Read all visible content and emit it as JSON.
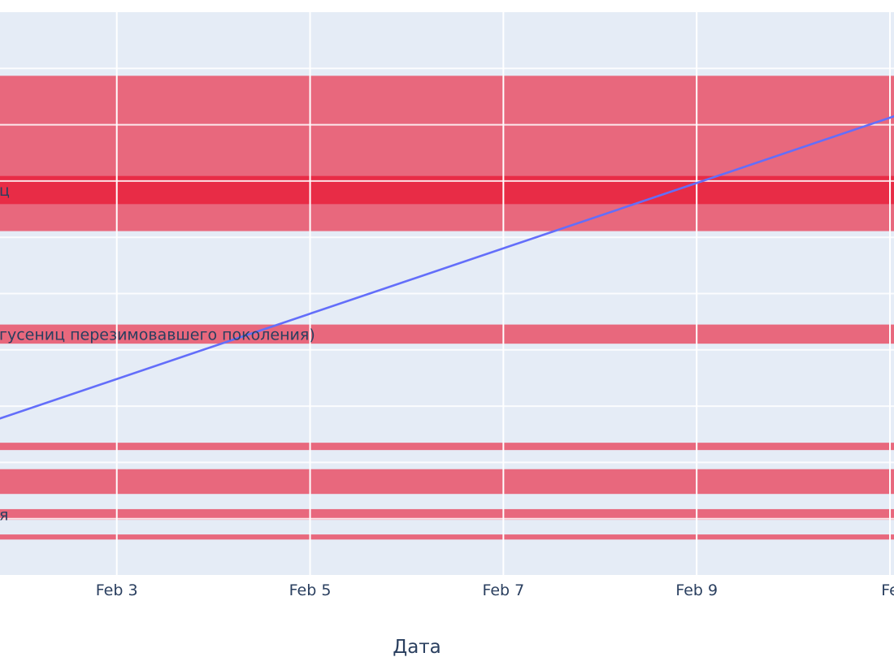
{
  "chart_data": {
    "type": "line",
    "xlabel": "Дата",
    "x_ticks": [
      {
        "label": "Feb 3",
        "date": "2024-02-03"
      },
      {
        "label": "Feb 5",
        "date": "2024-02-05"
      },
      {
        "label": "Feb 7",
        "date": "2024-02-07"
      },
      {
        "label": "Feb 9",
        "date": "2024-02-09"
      },
      {
        "label": "Fe",
        "date": "2024-02-11"
      }
    ],
    "xlim": [
      "2024-02-01T19:00",
      "2024-02-11T01:00"
    ],
    "ylim": [
      0,
      100
    ],
    "series": [
      {
        "color": "#636efa",
        "points": [
          {
            "x": "2024-02-01T19:00",
            "y": 27.8
          },
          {
            "x": "2024-02-11T01:00",
            "y": 81.5
          }
        ]
      }
    ],
    "bands": [
      {
        "y0": 70.0,
        "y1": 88.7,
        "color": "#e8475f",
        "opacity": 0.8,
        "label": ""
      },
      {
        "y0": 66.6,
        "y1": 70.0,
        "color": "#e8475f",
        "opacity": 0.8,
        "label": ""
      },
      {
        "y0": 61.1,
        "y1": 66.6,
        "color": "#e8475f",
        "opacity": 0.8,
        "label": ""
      },
      {
        "y0": 65.9,
        "y1": 70.9,
        "color": "#e8223c",
        "opacity": 0.85,
        "label": "ц"
      },
      {
        "y0": 41.1,
        "y1": 44.5,
        "color": "#e8475f",
        "opacity": 0.8,
        "label": "гусениц перезимовавшего поколения)"
      },
      {
        "y0": 22.2,
        "y1": 23.5,
        "color": "#e8475f",
        "opacity": 0.8,
        "label": ""
      },
      {
        "y0": 14.4,
        "y1": 18.8,
        "color": "#e8475f",
        "opacity": 0.8,
        "label": ""
      },
      {
        "y0": 9.8,
        "y1": 11.7,
        "color": "#e8475f",
        "opacity": 0.8,
        "label": "я"
      },
      {
        "y0": 6.3,
        "y1": 7.2,
        "color": "#e8475f",
        "opacity": 0.8,
        "label": ""
      }
    ],
    "grid": true,
    "background": "#e5ecf6"
  }
}
